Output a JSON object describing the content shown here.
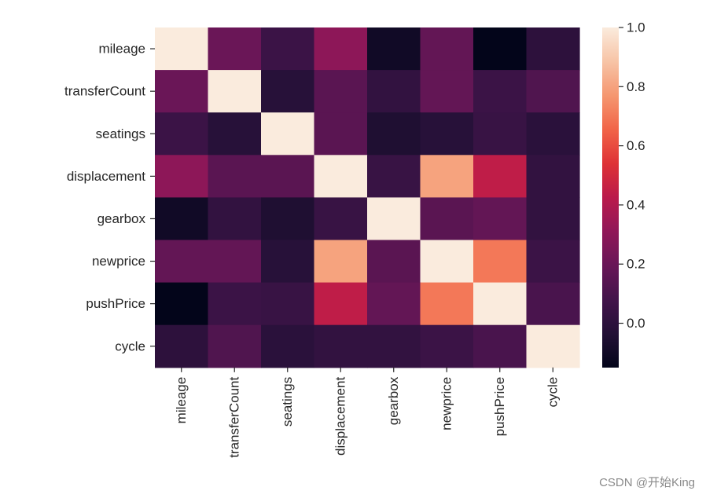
{
  "chart_data": {
    "type": "heatmap",
    "title": "",
    "xlabel": "",
    "ylabel": "",
    "rows": [
      "mileage",
      "transferCount",
      "seatings",
      "displacement",
      "gearbox",
      "newprice",
      "pushPrice",
      "cycle"
    ],
    "columns": [
      "mileage",
      "transferCount",
      "seatings",
      "displacement",
      "gearbox",
      "newprice",
      "pushPrice",
      "cycle"
    ],
    "values": [
      [
        1.0,
        0.2,
        0.05,
        0.3,
        -0.1,
        0.18,
        -0.15,
        0.0
      ],
      [
        0.2,
        1.0,
        -0.02,
        0.15,
        0.02,
        0.18,
        0.05,
        0.12
      ],
      [
        0.05,
        -0.02,
        1.0,
        0.15,
        -0.05,
        -0.02,
        0.04,
        -0.01
      ],
      [
        0.3,
        0.15,
        0.15,
        1.0,
        0.04,
        0.8,
        0.44,
        0.02
      ],
      [
        -0.1,
        0.02,
        -0.05,
        0.04,
        1.0,
        0.15,
        0.18,
        0.02
      ],
      [
        0.18,
        0.18,
        -0.02,
        0.8,
        0.15,
        1.0,
        0.7,
        0.05
      ],
      [
        -0.15,
        0.05,
        0.04,
        0.44,
        0.18,
        0.7,
        1.0,
        0.1
      ],
      [
        0.0,
        0.12,
        -0.01,
        0.02,
        0.02,
        0.05,
        0.1,
        1.0
      ]
    ],
    "colorbar": {
      "min": -0.15,
      "max": 1.0,
      "ticks": [
        0.0,
        0.2,
        0.4,
        0.6,
        0.8,
        1.0
      ],
      "tick_labels": [
        "0.0",
        "0.2",
        "0.4",
        "0.6",
        "0.8",
        "1.0"
      ],
      "colormap": "rocket"
    },
    "grid": false,
    "legend": "colorbar-right"
  },
  "watermark": "CSDN @开始King"
}
